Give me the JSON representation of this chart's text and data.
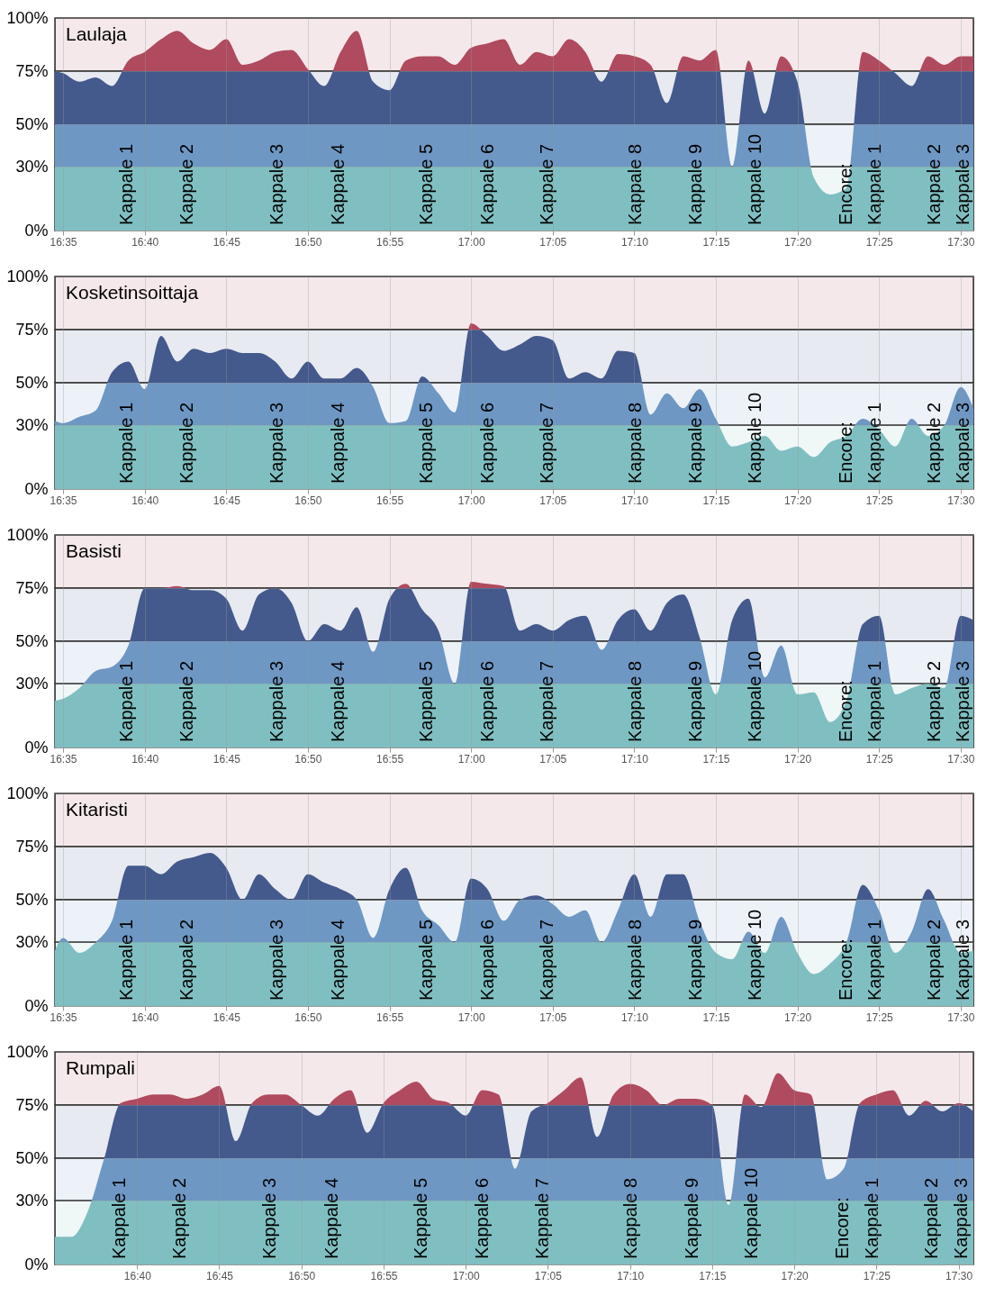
{
  "chart_data": [
    {
      "type": "area",
      "title": "Laulaja",
      "x": [
        16.575,
        16.5833,
        16.6,
        16.6167,
        16.6333,
        16.65,
        16.6667,
        16.6833,
        16.7,
        16.7167,
        16.7333,
        16.75,
        16.7667,
        16.7833,
        16.8,
        16.8167,
        16.8333,
        16.85,
        16.8667,
        16.8833,
        16.9,
        16.9167,
        16.9333,
        16.95,
        16.9667,
        16.9833,
        17,
        17.0167,
        17.0333,
        17.05,
        17.0667,
        17.0833,
        17.1,
        17.1167,
        17.1333,
        17.15,
        17.1667,
        17.1833,
        17.2,
        17.2167,
        17.2333,
        17.25,
        17.2667,
        17.2833,
        17.3,
        17.3167,
        17.3333,
        17.35,
        17.3667,
        17.3833,
        17.4,
        17.4167,
        17.4333,
        17.45,
        17.4667,
        17.4833,
        17.5,
        17.513
      ],
      "values": [
        75,
        74,
        70,
        72,
        68,
        80,
        84,
        90,
        94,
        88,
        85,
        90,
        78,
        80,
        84,
        85,
        76,
        68,
        84,
        94,
        70,
        66,
        80,
        82,
        82,
        78,
        86,
        88,
        90,
        78,
        84,
        82,
        90,
        84,
        70,
        83,
        82,
        78,
        60,
        82,
        80,
        85,
        30,
        80,
        55,
        82,
        70,
        25,
        17,
        20,
        84,
        80,
        74,
        68,
        82,
        78,
        82,
        82
      ],
      "xlim": [
        16.575,
        17.513
      ],
      "xticks": [
        {
          "value": 16.5833,
          "label": "16:35"
        },
        {
          "value": 16.6667,
          "label": "16:40"
        },
        {
          "value": 16.75,
          "label": "16:45"
        },
        {
          "value": 16.8333,
          "label": "16:50"
        },
        {
          "value": 16.9167,
          "label": "16:55"
        },
        {
          "value": 17,
          "label": "17:00"
        },
        {
          "value": 17.0833,
          "label": "17:05"
        },
        {
          "value": 17.1667,
          "label": "17:10"
        },
        {
          "value": 17.25,
          "label": "17:15"
        },
        {
          "value": 17.3333,
          "label": "17:20"
        },
        {
          "value": 17.4167,
          "label": "17:25"
        },
        {
          "value": 17.5,
          "label": "17:30"
        }
      ],
      "ylim": [
        0,
        100
      ],
      "yticks": [
        {
          "value": 0,
          "label": "0%"
        },
        {
          "value": 30,
          "label": "30%"
        },
        {
          "value": 50,
          "label": "50%"
        },
        {
          "value": 75,
          "label": "75%"
        },
        {
          "value": 100,
          "label": "100%"
        }
      ],
      "bands": [
        {
          "axis": "y",
          "from": 0,
          "to": 30,
          "color": "#80bfc1"
        },
        {
          "axis": "y",
          "from": 30,
          "to": 50,
          "color": "#6e97c3"
        },
        {
          "axis": "y",
          "from": 50,
          "to": 75,
          "color": "#44598c"
        },
        {
          "axis": "y",
          "from": 75,
          "to": 100,
          "color": "#b04a5e"
        }
      ],
      "grid": true,
      "annotations": [
        {
          "text": "Kappale 1",
          "x": 16.649,
          "y": 0
        },
        {
          "text": "Kappale 2",
          "x": 16.71,
          "y": 0
        },
        {
          "text": "Kappale 3",
          "x": 16.802,
          "y": 0
        },
        {
          "text": "Kappale 4",
          "x": 16.865,
          "y": 0
        },
        {
          "text": "Kappale 5",
          "x": 16.955,
          "y": 0
        },
        {
          "text": "Kappale 6",
          "x": 17.017,
          "y": 0
        },
        {
          "text": "Kappale 7",
          "x": 17.078,
          "y": 0
        },
        {
          "text": "Kappale 8",
          "x": 17.168,
          "y": 0
        },
        {
          "text": "Kappale 9",
          "x": 17.23,
          "y": 0
        },
        {
          "text": "Kappale 10",
          "x": 17.29,
          "y": 0
        },
        {
          "text": "Encore:",
          "x": 17.383,
          "y": 0
        },
        {
          "text": "Kappale 1",
          "x": 17.413,
          "y": 0
        },
        {
          "text": "Kappale 2",
          "x": 17.473,
          "y": 0
        },
        {
          "text": "Kappale 3",
          "x": 17.503,
          "y": 0
        }
      ]
    },
    {
      "type": "area",
      "title": "Kosketinsoittaja",
      "x": [
        16.575,
        16.5833,
        16.6,
        16.6167,
        16.6333,
        16.65,
        16.6667,
        16.6833,
        16.7,
        16.7167,
        16.7333,
        16.75,
        16.7667,
        16.7833,
        16.8,
        16.8167,
        16.8333,
        16.85,
        16.8667,
        16.8833,
        16.9,
        16.9167,
        16.9333,
        16.95,
        16.9667,
        16.9833,
        17,
        17.0167,
        17.0333,
        17.05,
        17.0667,
        17.0833,
        17.1,
        17.1167,
        17.1333,
        17.15,
        17.1667,
        17.1833,
        17.2,
        17.2167,
        17.2333,
        17.25,
        17.2667,
        17.2833,
        17.3,
        17.3167,
        17.3333,
        17.35,
        17.3667,
        17.3833,
        17.4,
        17.4167,
        17.4333,
        17.45,
        17.4667,
        17.4833,
        17.5,
        17.513
      ],
      "values": [
        32,
        31,
        34,
        37,
        55,
        60,
        47,
        72,
        60,
        66,
        64,
        66,
        64,
        64,
        60,
        52,
        60,
        52,
        52,
        57,
        48,
        31,
        32,
        53,
        45,
        36,
        78,
        72,
        65,
        68,
        72,
        70,
        52,
        55,
        52,
        65,
        64,
        35,
        45,
        38,
        47,
        33,
        20,
        22,
        25,
        18,
        20,
        15,
        22,
        25,
        33,
        28,
        20,
        33,
        25,
        30,
        48,
        38
      ],
      "xlim": [
        16.575,
        17.513
      ],
      "xticks": [
        {
          "value": 16.5833,
          "label": "16:35"
        },
        {
          "value": 16.6667,
          "label": "16:40"
        },
        {
          "value": 16.75,
          "label": "16:45"
        },
        {
          "value": 16.8333,
          "label": "16:50"
        },
        {
          "value": 16.9167,
          "label": "16:55"
        },
        {
          "value": 17,
          "label": "17:00"
        },
        {
          "value": 17.0833,
          "label": "17:05"
        },
        {
          "value": 17.1667,
          "label": "17:10"
        },
        {
          "value": 17.25,
          "label": "17:15"
        },
        {
          "value": 17.3333,
          "label": "17:20"
        },
        {
          "value": 17.4167,
          "label": "17:25"
        },
        {
          "value": 17.5,
          "label": "17:30"
        }
      ],
      "ylim": [
        0,
        100
      ],
      "yticks": [
        {
          "value": 0,
          "label": "0%"
        },
        {
          "value": 30,
          "label": "30%"
        },
        {
          "value": 50,
          "label": "50%"
        },
        {
          "value": 75,
          "label": "75%"
        },
        {
          "value": 100,
          "label": "100%"
        }
      ],
      "bands": [
        {
          "axis": "y",
          "from": 0,
          "to": 30,
          "color": "#80bfc1"
        },
        {
          "axis": "y",
          "from": 30,
          "to": 50,
          "color": "#6e97c3"
        },
        {
          "axis": "y",
          "from": 50,
          "to": 75,
          "color": "#44598c"
        },
        {
          "axis": "y",
          "from": 75,
          "to": 100,
          "color": "#b04a5e"
        }
      ],
      "grid": true,
      "annotations": [
        {
          "text": "Kappale 1",
          "x": 16.649,
          "y": 0
        },
        {
          "text": "Kappale 2",
          "x": 16.71,
          "y": 0
        },
        {
          "text": "Kappale 3",
          "x": 16.802,
          "y": 0
        },
        {
          "text": "Kappale 4",
          "x": 16.865,
          "y": 0
        },
        {
          "text": "Kappale 5",
          "x": 16.955,
          "y": 0
        },
        {
          "text": "Kappale 6",
          "x": 17.017,
          "y": 0
        },
        {
          "text": "Kappale 7",
          "x": 17.078,
          "y": 0
        },
        {
          "text": "Kappale 8",
          "x": 17.168,
          "y": 0
        },
        {
          "text": "Kappale 9",
          "x": 17.23,
          "y": 0
        },
        {
          "text": "Kappale 10",
          "x": 17.29,
          "y": 0
        },
        {
          "text": "Encore:",
          "x": 17.383,
          "y": 0
        },
        {
          "text": "Kappale 1",
          "x": 17.413,
          "y": 0
        },
        {
          "text": "Kappale 2",
          "x": 17.473,
          "y": 0
        },
        {
          "text": "Kappale 3",
          "x": 17.503,
          "y": 0
        }
      ]
    },
    {
      "type": "area",
      "title": "Basisti",
      "x": [
        16.575,
        16.5833,
        16.6,
        16.6167,
        16.6333,
        16.65,
        16.6667,
        16.6833,
        16.7,
        16.7167,
        16.7333,
        16.75,
        16.7667,
        16.7833,
        16.8,
        16.8167,
        16.8333,
        16.85,
        16.8667,
        16.8833,
        16.9,
        16.9167,
        16.9333,
        16.95,
        16.9667,
        16.9833,
        17,
        17.0167,
        17.0333,
        17.05,
        17.0667,
        17.0833,
        17.1,
        17.1167,
        17.1333,
        17.15,
        17.1667,
        17.1833,
        17.2,
        17.2167,
        17.2333,
        17.25,
        17.2667,
        17.2833,
        17.3,
        17.3167,
        17.3333,
        17.35,
        17.3667,
        17.3833,
        17.4,
        17.4167,
        17.4333,
        17.45,
        17.4667,
        17.4833,
        17.5,
        17.513
      ],
      "values": [
        22,
        23,
        28,
        36,
        38,
        48,
        75,
        75,
        76,
        74,
        74,
        70,
        55,
        72,
        75,
        68,
        50,
        58,
        55,
        66,
        45,
        70,
        77,
        65,
        55,
        30,
        78,
        77,
        76,
        55,
        58,
        55,
        60,
        62,
        46,
        60,
        65,
        55,
        68,
        72,
        52,
        25,
        60,
        70,
        33,
        48,
        25,
        26,
        12,
        22,
        58,
        62,
        25,
        28,
        30,
        28,
        62,
        60
      ],
      "xlim": [
        16.575,
        17.513
      ],
      "xticks": [
        {
          "value": 16.5833,
          "label": "16:35"
        },
        {
          "value": 16.6667,
          "label": "16:40"
        },
        {
          "value": 16.75,
          "label": "16:45"
        },
        {
          "value": 16.8333,
          "label": "16:50"
        },
        {
          "value": 16.9167,
          "label": "16:55"
        },
        {
          "value": 17,
          "label": "17:00"
        },
        {
          "value": 17.0833,
          "label": "17:05"
        },
        {
          "value": 17.1667,
          "label": "17:10"
        },
        {
          "value": 17.25,
          "label": "17:15"
        },
        {
          "value": 17.3333,
          "label": "17:20"
        },
        {
          "value": 17.4167,
          "label": "17:25"
        },
        {
          "value": 17.5,
          "label": "17:30"
        }
      ],
      "ylim": [
        0,
        100
      ],
      "yticks": [
        {
          "value": 0,
          "label": "0%"
        },
        {
          "value": 30,
          "label": "30%"
        },
        {
          "value": 50,
          "label": "50%"
        },
        {
          "value": 75,
          "label": "75%"
        },
        {
          "value": 100,
          "label": "100%"
        }
      ],
      "bands": [
        {
          "axis": "y",
          "from": 0,
          "to": 30,
          "color": "#80bfc1"
        },
        {
          "axis": "y",
          "from": 30,
          "to": 50,
          "color": "#6e97c3"
        },
        {
          "axis": "y",
          "from": 50,
          "to": 75,
          "color": "#44598c"
        },
        {
          "axis": "y",
          "from": 75,
          "to": 100,
          "color": "#b04a5e"
        }
      ],
      "grid": true,
      "annotations": [
        {
          "text": "Kappale 1",
          "x": 16.649,
          "y": 0
        },
        {
          "text": "Kappale 2",
          "x": 16.71,
          "y": 0
        },
        {
          "text": "Kappale 3",
          "x": 16.802,
          "y": 0
        },
        {
          "text": "Kappale 4",
          "x": 16.865,
          "y": 0
        },
        {
          "text": "Kappale 5",
          "x": 16.955,
          "y": 0
        },
        {
          "text": "Kappale 6",
          "x": 17.017,
          "y": 0
        },
        {
          "text": "Kappale 7",
          "x": 17.078,
          "y": 0
        },
        {
          "text": "Kappale 8",
          "x": 17.168,
          "y": 0
        },
        {
          "text": "Kappale 9",
          "x": 17.23,
          "y": 0
        },
        {
          "text": "Kappale 10",
          "x": 17.29,
          "y": 0
        },
        {
          "text": "Encore:",
          "x": 17.383,
          "y": 0
        },
        {
          "text": "Kappale 1",
          "x": 17.413,
          "y": 0
        },
        {
          "text": "Kappale 2",
          "x": 17.473,
          "y": 0
        },
        {
          "text": "Kappale 3",
          "x": 17.503,
          "y": 0
        }
      ]
    },
    {
      "type": "area",
      "title": "Kitaristi",
      "x": [
        16.575,
        16.5833,
        16.6,
        16.6167,
        16.6333,
        16.65,
        16.6667,
        16.6833,
        16.7,
        16.7167,
        16.7333,
        16.75,
        16.7667,
        16.7833,
        16.8,
        16.8167,
        16.8333,
        16.85,
        16.8667,
        16.8833,
        16.9,
        16.9167,
        16.9333,
        16.95,
        16.9667,
        16.9833,
        17,
        17.0167,
        17.0333,
        17.05,
        17.0667,
        17.0833,
        17.1,
        17.1167,
        17.1333,
        17.15,
        17.1667,
        17.1833,
        17.2,
        17.2167,
        17.2333,
        17.25,
        17.2667,
        17.2833,
        17.3,
        17.3167,
        17.3333,
        17.35,
        17.3667,
        17.3833,
        17.4,
        17.4167,
        17.4333,
        17.45,
        17.4667,
        17.4833,
        17.5,
        17.513
      ],
      "values": [
        26,
        32,
        25,
        30,
        40,
        66,
        66,
        62,
        68,
        70,
        72,
        65,
        50,
        62,
        55,
        50,
        62,
        58,
        55,
        50,
        32,
        55,
        65,
        45,
        38,
        30,
        60,
        55,
        40,
        50,
        52,
        48,
        42,
        45,
        30,
        45,
        62,
        42,
        62,
        62,
        40,
        25,
        22,
        35,
        25,
        42,
        25,
        15,
        20,
        30,
        57,
        45,
        25,
        35,
        55,
        40,
        25,
        26
      ],
      "xlim": [
        16.575,
        17.513
      ],
      "xticks": [
        {
          "value": 16.5833,
          "label": "16:35"
        },
        {
          "value": 16.6667,
          "label": "16:40"
        },
        {
          "value": 16.75,
          "label": "16:45"
        },
        {
          "value": 16.8333,
          "label": "16:50"
        },
        {
          "value": 16.9167,
          "label": "16:55"
        },
        {
          "value": 17,
          "label": "17:00"
        },
        {
          "value": 17.0833,
          "label": "17:05"
        },
        {
          "value": 17.1667,
          "label": "17:10"
        },
        {
          "value": 17.25,
          "label": "17:15"
        },
        {
          "value": 17.3333,
          "label": "17:20"
        },
        {
          "value": 17.4167,
          "label": "17:25"
        },
        {
          "value": 17.5,
          "label": "17:30"
        }
      ],
      "ylim": [
        0,
        100
      ],
      "yticks": [
        {
          "value": 0,
          "label": "0%"
        },
        {
          "value": 30,
          "label": "30%"
        },
        {
          "value": 50,
          "label": "50%"
        },
        {
          "value": 75,
          "label": "75%"
        },
        {
          "value": 100,
          "label": "100%"
        }
      ],
      "bands": [
        {
          "axis": "y",
          "from": 0,
          "to": 30,
          "color": "#80bfc1"
        },
        {
          "axis": "y",
          "from": 30,
          "to": 50,
          "color": "#6e97c3"
        },
        {
          "axis": "y",
          "from": 50,
          "to": 75,
          "color": "#44598c"
        },
        {
          "axis": "y",
          "from": 75,
          "to": 100,
          "color": "#b04a5e"
        }
      ],
      "grid": true,
      "annotations": [
        {
          "text": "Kappale 1",
          "x": 16.649,
          "y": 0
        },
        {
          "text": "Kappale 2",
          "x": 16.71,
          "y": 0
        },
        {
          "text": "Kappale 3",
          "x": 16.802,
          "y": 0
        },
        {
          "text": "Kappale 4",
          "x": 16.865,
          "y": 0
        },
        {
          "text": "Kappale 5",
          "x": 16.955,
          "y": 0
        },
        {
          "text": "Kappale 6",
          "x": 17.017,
          "y": 0
        },
        {
          "text": "Kappale 7",
          "x": 17.078,
          "y": 0
        },
        {
          "text": "Kappale 8",
          "x": 17.168,
          "y": 0
        },
        {
          "text": "Kappale 9",
          "x": 17.23,
          "y": 0
        },
        {
          "text": "Kappale 10",
          "x": 17.29,
          "y": 0
        },
        {
          "text": "Encore:",
          "x": 17.383,
          "y": 0
        },
        {
          "text": "Kappale 1",
          "x": 17.413,
          "y": 0
        },
        {
          "text": "Kappale 2",
          "x": 17.473,
          "y": 0
        },
        {
          "text": "Kappale 3",
          "x": 17.503,
          "y": 0
        }
      ]
    },
    {
      "type": "area",
      "title": "Rumpali",
      "x": [
        16.5833,
        16.6,
        16.6167,
        16.6333,
        16.65,
        16.6667,
        16.6833,
        16.7,
        16.7167,
        16.7333,
        16.75,
        16.7667,
        16.7833,
        16.8,
        16.8167,
        16.8333,
        16.85,
        16.8667,
        16.8833,
        16.9,
        16.9167,
        16.9333,
        16.95,
        16.9667,
        16.9833,
        17,
        17.0167,
        17.0333,
        17.05,
        17.0667,
        17.0833,
        17.1,
        17.1167,
        17.1333,
        17.15,
        17.1667,
        17.1833,
        17.2,
        17.2167,
        17.2333,
        17.25,
        17.2667,
        17.2833,
        17.3,
        17.3167,
        17.3333,
        17.35,
        17.3667,
        17.3833,
        17.4,
        17.4167,
        17.4333,
        17.45,
        17.4667,
        17.4833,
        17.5,
        17.515
      ],
      "values": [
        13,
        13,
        25,
        50,
        76,
        78,
        80,
        80,
        78,
        80,
        84,
        58,
        76,
        80,
        80,
        75,
        70,
        78,
        82,
        62,
        76,
        82,
        86,
        78,
        76,
        70,
        82,
        80,
        45,
        72,
        76,
        82,
        88,
        60,
        80,
        85,
        82,
        75,
        78,
        78,
        75,
        28,
        80,
        74,
        90,
        82,
        80,
        40,
        45,
        76,
        80,
        82,
        70,
        77,
        72,
        76,
        72
      ],
      "xlim": [
        16.5833,
        17.515
      ],
      "xticks": [
        {
          "value": 16.6667,
          "label": "16:40"
        },
        {
          "value": 16.75,
          "label": "16:45"
        },
        {
          "value": 16.8333,
          "label": "16:50"
        },
        {
          "value": 16.9167,
          "label": "16:55"
        },
        {
          "value": 17,
          "label": "17:00"
        },
        {
          "value": 17.0833,
          "label": "17:05"
        },
        {
          "value": 17.1667,
          "label": "17:10"
        },
        {
          "value": 17.25,
          "label": "17:15"
        },
        {
          "value": 17.3333,
          "label": "17:20"
        },
        {
          "value": 17.4167,
          "label": "17:25"
        },
        {
          "value": 17.5,
          "label": "17:30"
        }
      ],
      "ylim": [
        0,
        100
      ],
      "yticks": [
        {
          "value": 0,
          "label": "0%"
        },
        {
          "value": 30,
          "label": "30%"
        },
        {
          "value": 50,
          "label": "50%"
        },
        {
          "value": 75,
          "label": "75%"
        },
        {
          "value": 100,
          "label": "100%"
        }
      ],
      "bands": [
        {
          "axis": "y",
          "from": 0,
          "to": 30,
          "color": "#80bfc1"
        },
        {
          "axis": "y",
          "from": 30,
          "to": 50,
          "color": "#6e97c3"
        },
        {
          "axis": "y",
          "from": 50,
          "to": 75,
          "color": "#44598c"
        },
        {
          "axis": "y",
          "from": 75,
          "to": 100,
          "color": "#b04a5e"
        }
      ],
      "grid": true,
      "annotations": [
        {
          "text": "Kappale 1",
          "x": 16.649,
          "y": 0
        },
        {
          "text": "Kappale 2",
          "x": 16.71,
          "y": 0
        },
        {
          "text": "Kappale 3",
          "x": 16.802,
          "y": 0
        },
        {
          "text": "Kappale 4",
          "x": 16.865,
          "y": 0
        },
        {
          "text": "Kappale 5",
          "x": 16.955,
          "y": 0
        },
        {
          "text": "Kappale 6",
          "x": 17.017,
          "y": 0
        },
        {
          "text": "Kappale 7",
          "x": 17.078,
          "y": 0
        },
        {
          "text": "Kappale 8",
          "x": 17.168,
          "y": 0
        },
        {
          "text": "Kappale 9",
          "x": 17.23,
          "y": 0
        },
        {
          "text": "Kappale 10",
          "x": 17.29,
          "y": 0
        },
        {
          "text": "Encore:",
          "x": 17.383,
          "y": 0
        },
        {
          "text": "Kappale 1",
          "x": 17.413,
          "y": 0
        },
        {
          "text": "Kappale 2",
          "x": 17.473,
          "y": 0
        },
        {
          "text": "Kappale 3",
          "x": 17.503,
          "y": 0
        }
      ]
    }
  ]
}
